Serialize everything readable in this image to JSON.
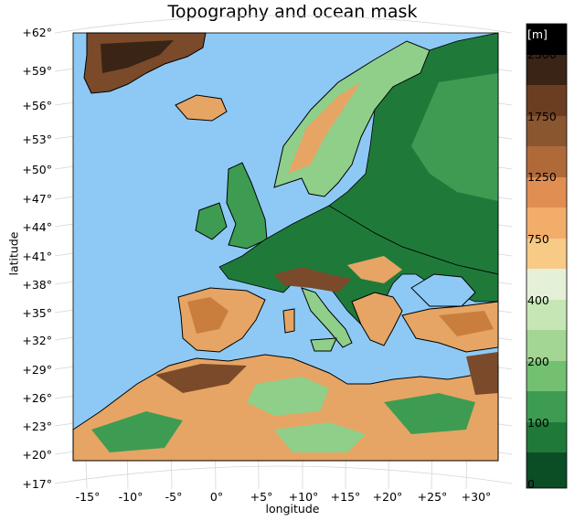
{
  "title": "Topography and ocean mask",
  "axes": {
    "latitude_label": "latitude",
    "longitude_label": "longitude",
    "latitude_ticks": [
      "+62°",
      "+59°",
      "+56°",
      "+53°",
      "+50°",
      "+47°",
      "+44°",
      "+41°",
      "+38°",
      "+35°",
      "+32°",
      "+29°",
      "+26°",
      "+23°",
      "+20°",
      "+17°"
    ],
    "longitude_ticks": [
      "-15°",
      "-10°",
      "-5°",
      "0°",
      "+5°",
      "+10°",
      "+15°",
      "+20°",
      "+25°",
      "+30°"
    ]
  },
  "colorbar": {
    "unit": "[m]",
    "tick_labels": [
      "2500",
      "1750",
      "1250",
      "750",
      "400",
      "200",
      "100",
      "0"
    ]
  },
  "colors": {
    "ocean": "#8ec9f5",
    "lowland": "#1f7a3a",
    "midland": "#8fcf8a",
    "highland": "#e6a565",
    "mountain": "#7a4a2a",
    "peak": "#000000"
  }
}
